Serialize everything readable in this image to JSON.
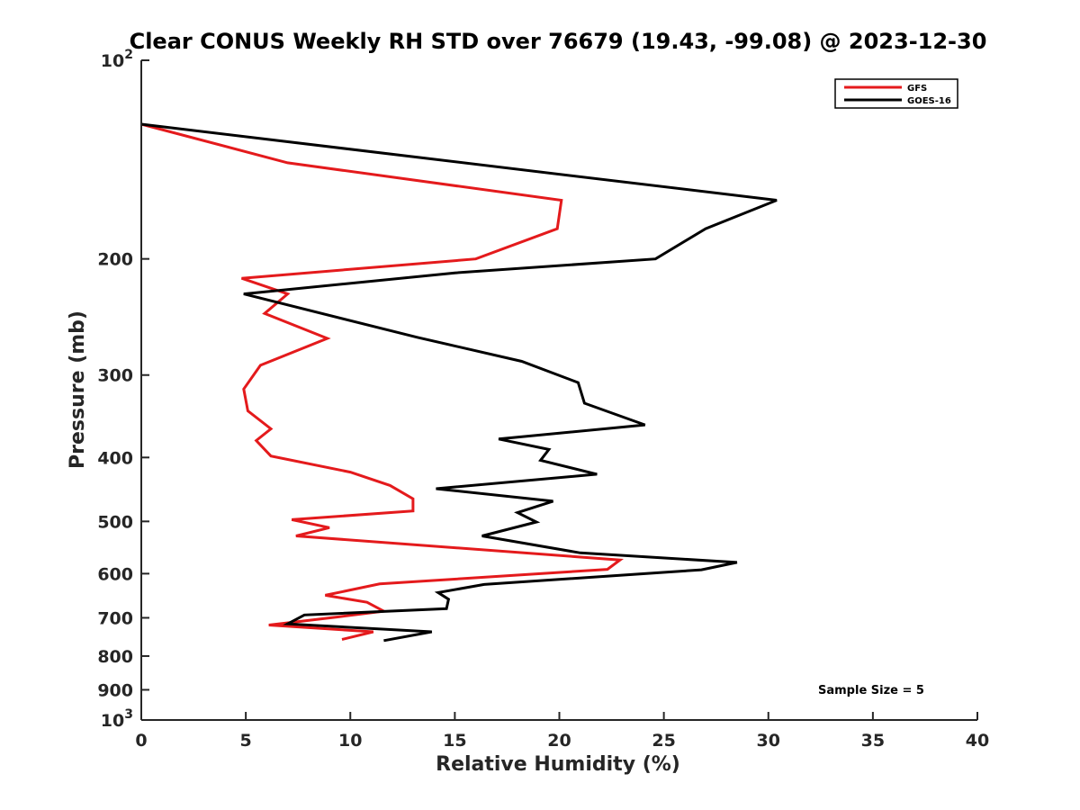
{
  "chart_data": {
    "type": "line",
    "title": "Clear CONUS Weekly RH STD over 76679 (19.43, -99.08) @ 2023-12-30",
    "xlabel": "Relative Humidity (%)",
    "ylabel": "Pressure (mb)",
    "xlim": [
      0,
      40
    ],
    "ylim": [
      100,
      1000
    ],
    "y_scale": "log",
    "y_reversed": true,
    "grid": false,
    "legend_position": "top-right",
    "x_ticks": [
      0,
      5,
      10,
      15,
      20,
      25,
      30,
      35,
      40
    ],
    "x_tick_labels": [
      "0",
      "5",
      "10",
      "15",
      "20",
      "25",
      "30",
      "35",
      "40"
    ],
    "y_ticks": [
      100,
      200,
      300,
      400,
      500,
      600,
      700,
      800,
      900,
      1000
    ],
    "y_tick_labels": [
      {
        "base": "10",
        "exp": "2"
      },
      {
        "base": "200",
        "exp": ""
      },
      {
        "base": "300",
        "exp": ""
      },
      {
        "base": "400",
        "exp": ""
      },
      {
        "base": "500",
        "exp": ""
      },
      {
        "base": "600",
        "exp": ""
      },
      {
        "base": "700",
        "exp": ""
      },
      {
        "base": "800",
        "exp": ""
      },
      {
        "base": "900",
        "exp": ""
      },
      {
        "base": "10",
        "exp": "3"
      }
    ],
    "series": [
      {
        "name": "GFS",
        "color": "#e41a1c",
        "points": [
          [
            0.0,
            125
          ],
          [
            7.0,
            143
          ],
          [
            20.1,
            163
          ],
          [
            19.9,
            180
          ],
          [
            16.0,
            200
          ],
          [
            4.8,
            214
          ],
          [
            7.0,
            226
          ],
          [
            5.9,
            242
          ],
          [
            8.9,
            264
          ],
          [
            5.7,
            290
          ],
          [
            4.9,
            315
          ],
          [
            5.1,
            340
          ],
          [
            6.2,
            362
          ],
          [
            5.5,
            377
          ],
          [
            6.2,
            398
          ],
          [
            10.0,
            421
          ],
          [
            11.9,
            441
          ],
          [
            13.0,
            462
          ],
          [
            13.0,
            482
          ],
          [
            7.2,
            497
          ],
          [
            9.0,
            511
          ],
          [
            7.4,
            526
          ],
          [
            22.9,
            572
          ],
          [
            22.3,
            591
          ],
          [
            11.4,
            622
          ],
          [
            8.8,
            647
          ],
          [
            10.8,
            663
          ],
          [
            11.6,
            684
          ],
          [
            9.4,
            698
          ],
          [
            6.1,
            718
          ],
          [
            11.1,
            735
          ],
          [
            9.6,
            755
          ]
        ]
      },
      {
        "name": "GOES-16",
        "color": "#000000",
        "points": [
          [
            0.0,
            125
          ],
          [
            30.4,
            163
          ],
          [
            27.0,
            180
          ],
          [
            24.6,
            200
          ],
          [
            15.0,
            210
          ],
          [
            4.9,
            226
          ],
          [
            13.2,
            263
          ],
          [
            18.2,
            286
          ],
          [
            20.9,
            308
          ],
          [
            21.2,
            331
          ],
          [
            24.1,
            357
          ],
          [
            17.1,
            375
          ],
          [
            19.5,
            389
          ],
          [
            19.1,
            404
          ],
          [
            21.8,
            424
          ],
          [
            14.1,
            446
          ],
          [
            19.7,
            466
          ],
          [
            18.0,
            485
          ],
          [
            18.9,
            501
          ],
          [
            16.3,
            526
          ],
          [
            21.0,
            558
          ],
          [
            28.5,
            577
          ],
          [
            26.8,
            592
          ],
          [
            16.4,
            623
          ],
          [
            14.2,
            641
          ],
          [
            14.7,
            656
          ],
          [
            14.6,
            678
          ],
          [
            7.8,
            693
          ],
          [
            7.0,
            715
          ],
          [
            13.9,
            735
          ],
          [
            11.6,
            758
          ]
        ]
      }
    ],
    "annotation": "Sample Size = 5"
  }
}
